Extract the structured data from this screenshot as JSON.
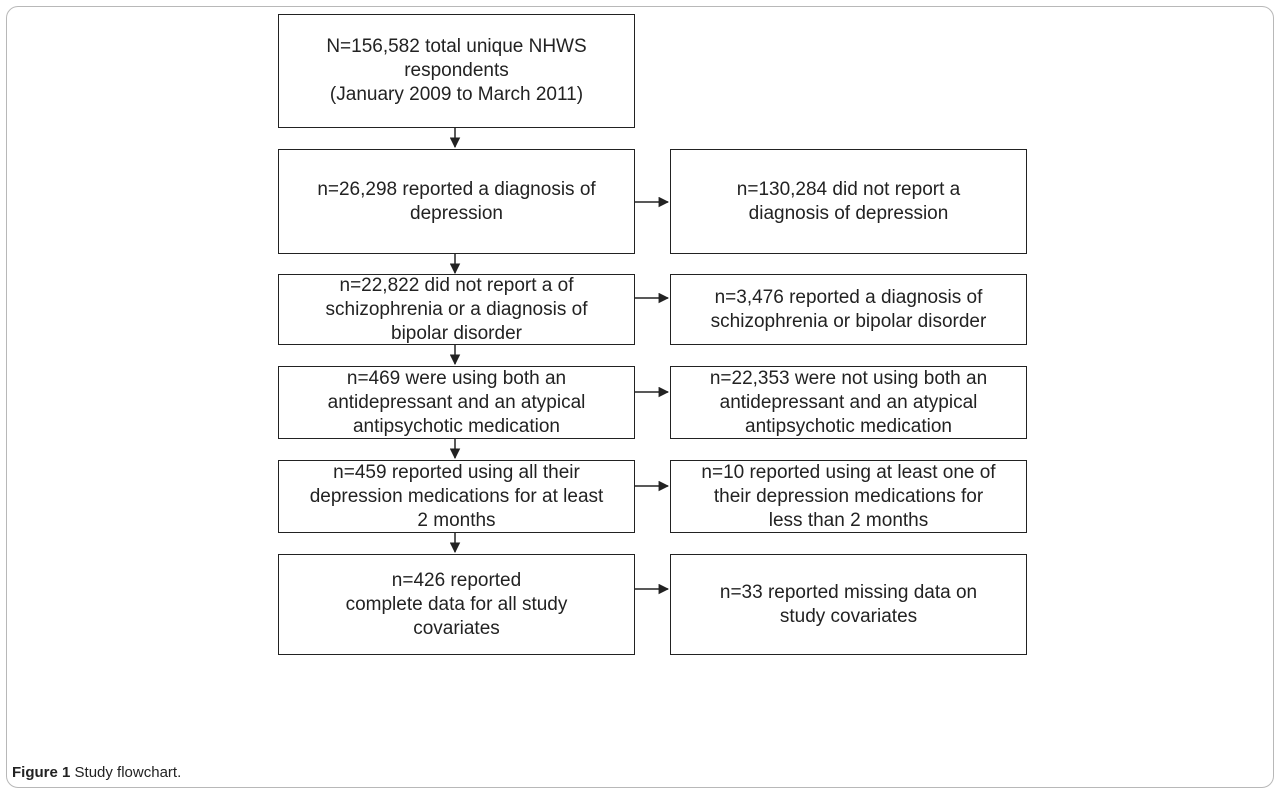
{
  "flowchart": {
    "main": [
      {
        "id": "total",
        "text": "N=156,582 total unique NHWS\nrespondents\n(January 2009 to March 2011)"
      },
      {
        "id": "depression",
        "text": "n=26,298 reported a diagnosis of\ndepression"
      },
      {
        "id": "no-schizo",
        "text": "n=22,822 did not report a of\nschizophrenia or a diagnosis of\nbipolar disorder"
      },
      {
        "id": "both-meds",
        "text": "n=469 were using both an\nantidepressant and an atypical\nantipsychotic medication"
      },
      {
        "id": "two-months",
        "text": "n=459 reported using all their\ndepression medications for at least\n2 months"
      },
      {
        "id": "complete",
        "text": "n=426 reported\ncomplete data for all study\ncovariates"
      }
    ],
    "side": [
      {
        "id": "no-depression",
        "text": "n=130,284 did not report a\ndiagnosis of depression"
      },
      {
        "id": "schizo",
        "text": "n=3,476 reported a diagnosis of\nschizophrenia or bipolar disorder"
      },
      {
        "id": "not-both",
        "text": "n=22,353 were not using both an\nantidepressant and an atypical\nantipsychotic medication"
      },
      {
        "id": "less-two",
        "text": "n=10 reported using at least one of\ntheir depression medications for\nless than 2 months"
      },
      {
        "id": "missing",
        "text": "n=33 reported missing data on\nstudy covariates"
      }
    ]
  },
  "caption": {
    "label": "Figure 1",
    "text": " Study flowchart."
  }
}
